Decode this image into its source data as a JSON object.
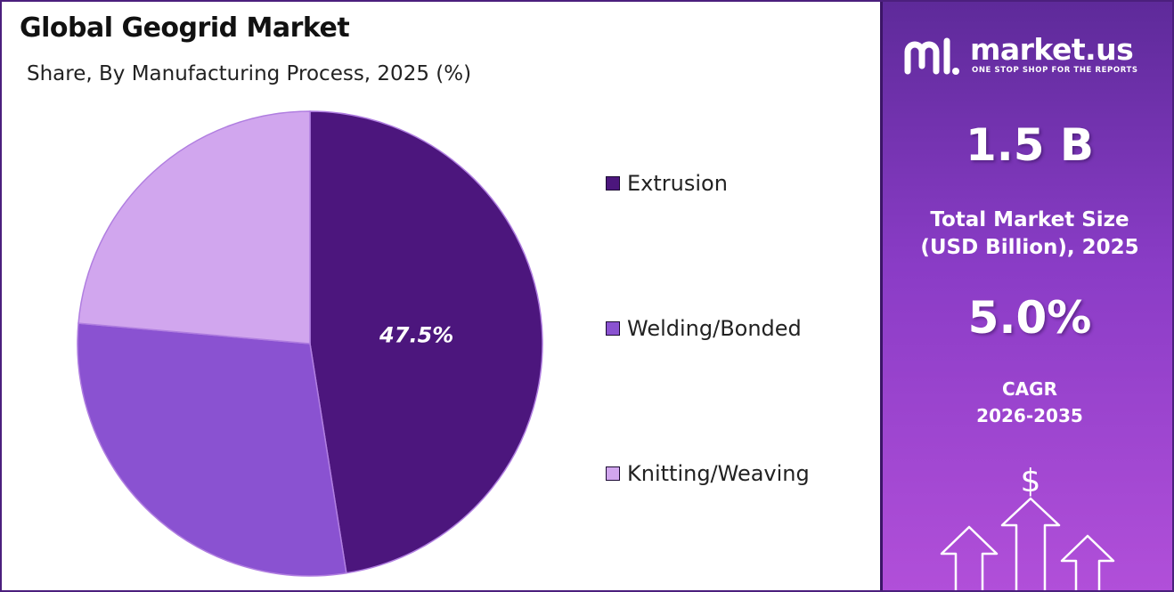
{
  "header": {
    "title": "Global Geogrid Market",
    "subtitle": "Share, By Manufacturing Process, 2025 (%)"
  },
  "chart_data": {
    "type": "pie",
    "title": "Global Geogrid Market",
    "subtitle": "Share, By Manufacturing Process, 2025 (%)",
    "categories": [
      "Extrusion",
      "Welding/Bonded",
      "Knitting/Weaving"
    ],
    "values": [
      47.5,
      28.9,
      23.6
    ],
    "colors": [
      "#4c167d",
      "#8a52d1",
      "#d1a6ee"
    ],
    "data_labels": [
      "47.5%",
      "",
      ""
    ],
    "legend_position": "right",
    "start_angle": "12 o'clock, clockwise"
  },
  "panel": {
    "brand": {
      "name": "market.us",
      "tagline": "ONE STOP SHOP FOR THE REPORTS"
    },
    "market_size": {
      "value": "1.5 B",
      "label_line1": "Total Market Size",
      "label_line2": "(USD Billion), 2025"
    },
    "cagr": {
      "value": "5.0%",
      "label_line1": "CAGR",
      "label_line2": "2026-2035"
    },
    "icon": "dollar-arrows-icon",
    "currency_symbol": "$"
  }
}
